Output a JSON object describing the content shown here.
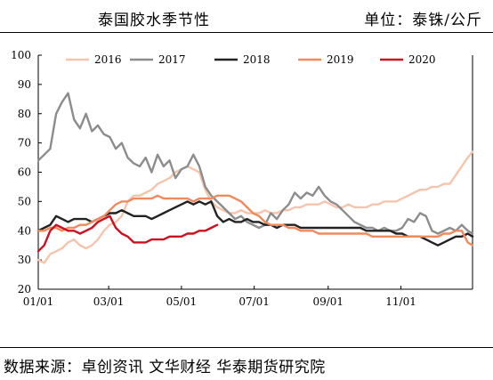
{
  "header": {
    "title": "泰国胶水季节性",
    "unit": "单位：泰铢/公斤"
  },
  "footer": {
    "source": "数据来源：卓创资讯 文华财经 华泰期货研究院"
  },
  "chart_data": {
    "type": "line",
    "title": "泰国胶水季节性",
    "xlabel": "",
    "ylabel": "",
    "ylim": [
      20,
      100
    ],
    "yticks": [
      20,
      30,
      40,
      50,
      60,
      70,
      80,
      90,
      100
    ],
    "xticks": [
      "01/01",
      "03/01",
      "05/01",
      "07/01",
      "09/01",
      "11/01"
    ],
    "xtick_days": [
      0,
      59,
      120,
      181,
      243,
      304
    ],
    "xlim_days": [
      0,
      364
    ],
    "grid": false,
    "legend": "top",
    "series": [
      {
        "name": "2016",
        "color": "#f6c4ad",
        "x": [
          0,
          5,
          10,
          15,
          20,
          25,
          30,
          35,
          40,
          45,
          50,
          55,
          60,
          65,
          70,
          75,
          80,
          85,
          90,
          95,
          100,
          105,
          110,
          115,
          120,
          125,
          130,
          135,
          140,
          145,
          150,
          155,
          160,
          165,
          170,
          175,
          180,
          185,
          190,
          195,
          200,
          205,
          210,
          215,
          220,
          225,
          230,
          235,
          240,
          245,
          250,
          255,
          260,
          265,
          270,
          275,
          280,
          285,
          290,
          295,
          300,
          305,
          310,
          315,
          320,
          325,
          330,
          335,
          340,
          345,
          350,
          355,
          360,
          364
        ],
        "y": [
          30,
          29,
          32,
          33,
          34,
          36,
          37,
          35,
          34,
          35,
          37,
          40,
          42,
          43,
          45,
          50,
          52,
          52,
          53,
          54,
          56,
          57,
          58,
          60,
          61,
          62,
          61,
          60,
          54,
          50,
          48,
          47,
          46,
          46,
          47,
          46,
          46,
          46,
          47,
          46,
          46,
          47,
          47,
          48,
          48,
          49,
          49,
          49,
          50,
          49,
          48,
          48,
          49,
          48,
          48,
          48,
          49,
          49,
          50,
          50,
          50,
          51,
          52,
          53,
          54,
          54,
          55,
          55,
          56,
          56,
          59,
          62,
          65,
          67
        ]
      },
      {
        "name": "2017",
        "color": "#8c8c8c",
        "x": [
          0,
          5,
          10,
          15,
          20,
          25,
          30,
          35,
          40,
          45,
          50,
          55,
          60,
          65,
          70,
          75,
          80,
          85,
          90,
          95,
          100,
          105,
          110,
          115,
          120,
          125,
          130,
          135,
          140,
          145,
          150,
          155,
          160,
          165,
          170,
          175,
          180,
          185,
          190,
          195,
          200,
          205,
          210,
          215,
          220,
          225,
          230,
          235,
          240,
          245,
          250,
          255,
          260,
          265,
          270,
          275,
          280,
          285,
          290,
          295,
          300,
          305,
          310,
          315,
          320,
          325,
          330,
          335,
          340,
          345,
          350,
          355,
          360,
          364
        ],
        "y": [
          64,
          66,
          68,
          80,
          84,
          87,
          78,
          75,
          80,
          74,
          76,
          73,
          72,
          68,
          70,
          65,
          63,
          62,
          65,
          60,
          66,
          62,
          64,
          58,
          61,
          62,
          66,
          62,
          55,
          52,
          50,
          48,
          46,
          44,
          45,
          43,
          42,
          41,
          42,
          46,
          44,
          47,
          49,
          53,
          51,
          53,
          52,
          55,
          52,
          50,
          49,
          47,
          45,
          43,
          42,
          41,
          41,
          40,
          41,
          40,
          40,
          41,
          44,
          43,
          46,
          45,
          40,
          39,
          40,
          41,
          40,
          42,
          40,
          39
        ]
      },
      {
        "name": "2018",
        "color": "#222222",
        "x": [
          0,
          5,
          10,
          15,
          20,
          25,
          30,
          35,
          40,
          45,
          50,
          55,
          60,
          65,
          70,
          75,
          80,
          85,
          90,
          95,
          100,
          105,
          110,
          115,
          120,
          125,
          130,
          135,
          140,
          145,
          150,
          155,
          160,
          165,
          170,
          175,
          180,
          185,
          190,
          195,
          200,
          205,
          210,
          215,
          220,
          225,
          230,
          235,
          240,
          245,
          250,
          255,
          260,
          265,
          270,
          275,
          280,
          285,
          290,
          295,
          300,
          305,
          310,
          315,
          320,
          325,
          330,
          335,
          340,
          345,
          350,
          355,
          360,
          364
        ],
        "y": [
          40,
          41,
          42,
          45,
          44,
          43,
          44,
          44,
          44,
          43,
          44,
          45,
          46,
          46,
          47,
          46,
          45,
          45,
          45,
          44,
          45,
          46,
          47,
          48,
          49,
          50,
          49,
          50,
          49,
          50,
          45,
          43,
          44,
          43,
          43,
          44,
          43,
          43,
          42,
          42,
          41,
          42,
          42,
          42,
          41,
          41,
          41,
          41,
          41,
          41,
          41,
          41,
          41,
          41,
          41,
          40,
          40,
          40,
          40,
          40,
          39,
          39,
          38,
          38,
          38,
          37,
          36,
          35,
          36,
          37,
          38,
          38,
          39,
          38
        ]
      },
      {
        "name": "2019",
        "color": "#f08a5d",
        "x": [
          0,
          5,
          10,
          15,
          20,
          25,
          30,
          35,
          40,
          45,
          50,
          55,
          60,
          65,
          70,
          75,
          80,
          85,
          90,
          95,
          100,
          105,
          110,
          115,
          120,
          125,
          130,
          135,
          140,
          145,
          150,
          155,
          160,
          165,
          170,
          175,
          180,
          185,
          190,
          195,
          200,
          205,
          210,
          215,
          220,
          225,
          230,
          235,
          240,
          245,
          250,
          255,
          260,
          265,
          270,
          275,
          280,
          285,
          290,
          295,
          300,
          305,
          310,
          315,
          320,
          325,
          330,
          335,
          340,
          345,
          350,
          355,
          360,
          364
        ],
        "y": [
          40,
          40,
          41,
          41,
          40,
          41,
          41,
          42,
          42,
          43,
          44,
          45,
          47,
          49,
          50,
          50,
          51,
          51,
          51,
          51,
          52,
          51,
          51,
          51,
          51,
          51,
          50,
          51,
          51,
          51,
          52,
          52,
          52,
          51,
          50,
          48,
          46,
          45,
          43,
          42,
          42,
          42,
          41,
          41,
          40,
          40,
          40,
          39,
          39,
          39,
          39,
          39,
          39,
          39,
          39,
          39,
          38,
          38,
          38,
          38,
          38,
          38,
          38,
          38,
          38,
          38,
          38,
          38,
          39,
          39,
          40,
          40,
          36,
          35
        ]
      },
      {
        "name": "2020",
        "color": "#cc1020",
        "x": [
          0,
          5,
          10,
          15,
          20,
          25,
          30,
          35,
          40,
          45,
          50,
          55,
          60,
          65,
          70,
          75,
          80,
          85,
          90,
          95,
          100,
          105,
          110,
          115,
          120,
          125,
          130,
          135,
          140,
          145,
          150
        ],
        "y": [
          33,
          35,
          40,
          42,
          41,
          40,
          40,
          39,
          40,
          41,
          43,
          44,
          45,
          41,
          39,
          38,
          36,
          36,
          36,
          37,
          37,
          37,
          38,
          38,
          38,
          39,
          39,
          40,
          40,
          41,
          42
        ]
      }
    ]
  }
}
